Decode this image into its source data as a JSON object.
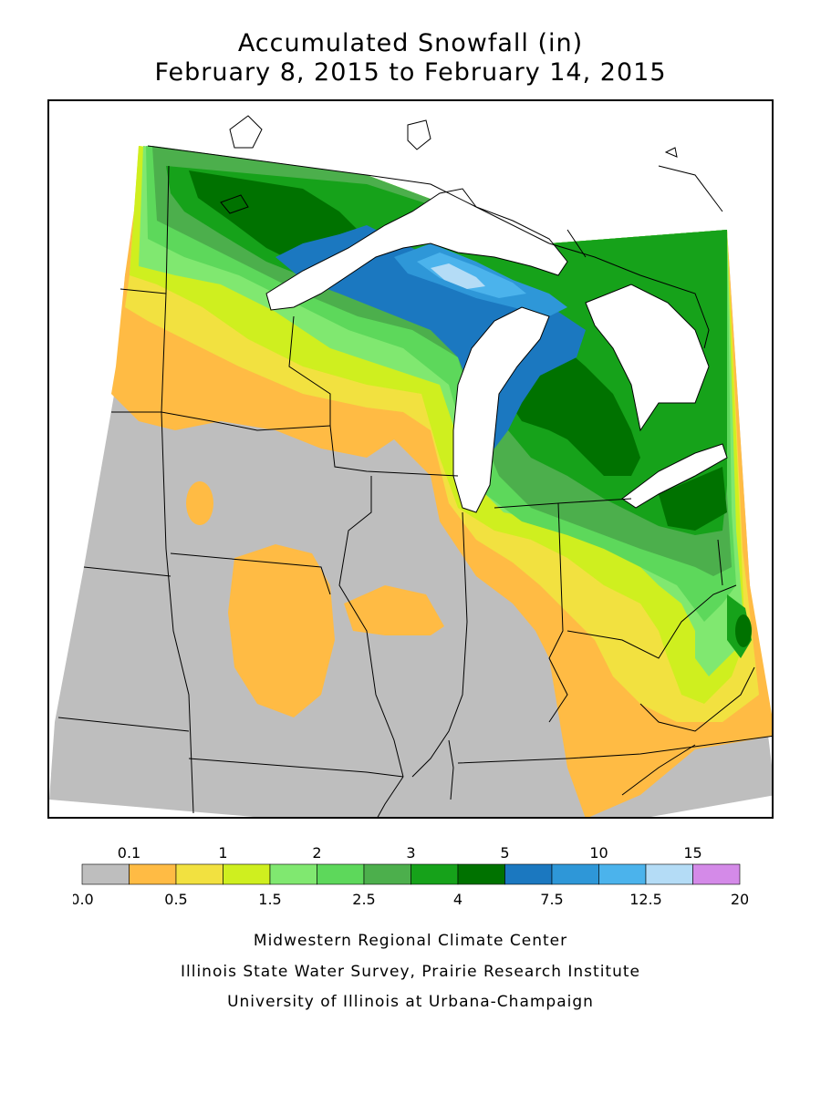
{
  "title": {
    "line1": "Accumulated Snowfall (in)",
    "line2": "February 8, 2015 to February 14, 2015"
  },
  "legend": {
    "top_labels": [
      "0.1",
      "1",
      "2",
      "3",
      "5",
      "10",
      "15"
    ],
    "bottom_labels": [
      "0.0",
      "0.5",
      "1.5",
      "2.5",
      "4",
      "7.5",
      "12.5",
      "20"
    ],
    "colors": [
      "#bebebe",
      "#ffbb44",
      "#f2e140",
      "#cfef1f",
      "#80e870",
      "#5dd85b",
      "#4caf4c",
      "#16a21a",
      "#007200",
      "#1b78c0",
      "#2e97d8",
      "#4bb3ec",
      "#b4dcf6",
      "#d48ae8"
    ]
  },
  "credits": {
    "line1": "Midwestern Regional Climate Center",
    "line2": "Illinois State Water Survey, Prairie Research Institute",
    "line3": "University of Illinois at Urbana-Champaign"
  }
}
